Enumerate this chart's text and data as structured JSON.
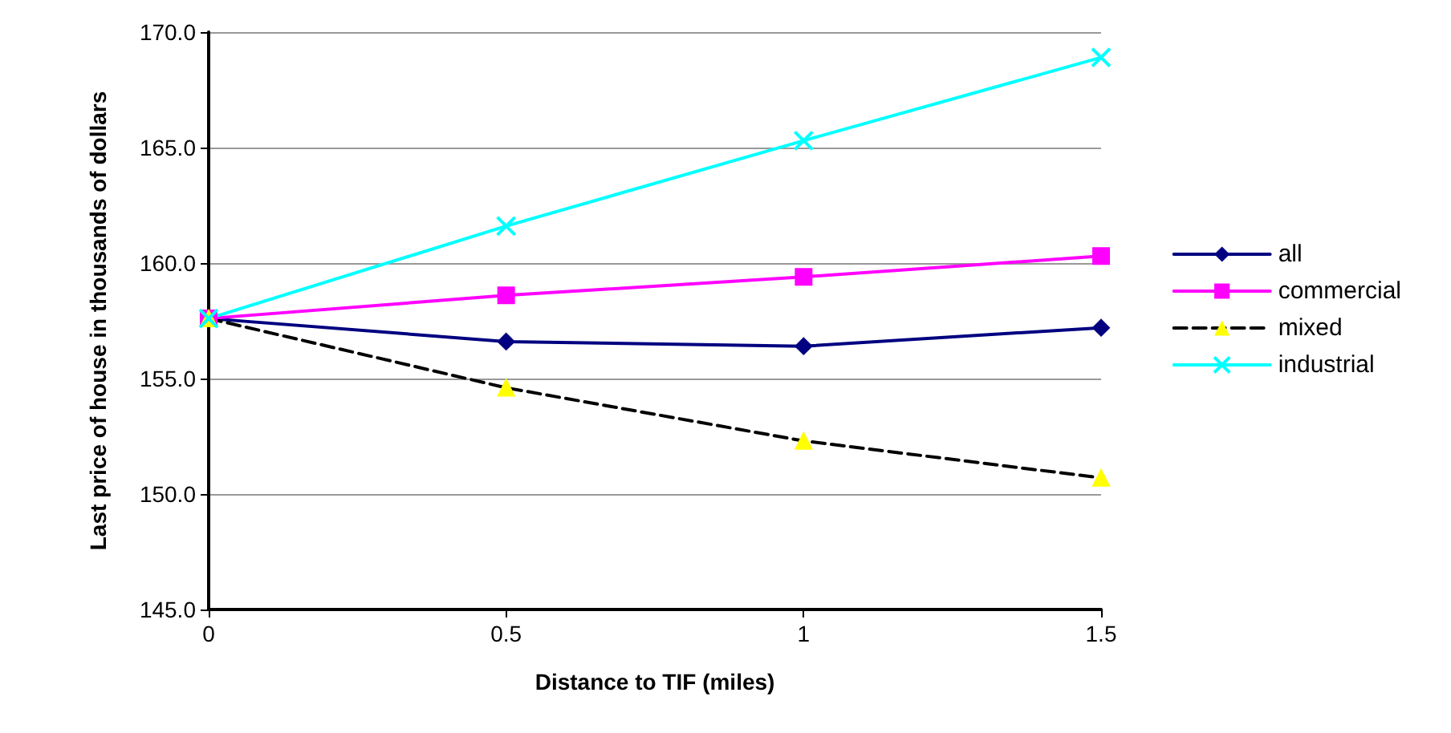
{
  "chart_data": {
    "type": "line",
    "xlabel": "Distance to TIF (miles)",
    "ylabel": "Last price of house in thousands of dollars",
    "x": [
      0,
      0.5,
      1,
      1.5
    ],
    "xlim": [
      0,
      1.5
    ],
    "xticks": [
      0,
      0.5,
      1,
      1.5
    ],
    "ylim": [
      145,
      170
    ],
    "yticks": [
      {
        "value": 145,
        "label": "145.0"
      },
      {
        "value": 150,
        "label": "150.0"
      },
      {
        "value": 155,
        "label": "155.0"
      },
      {
        "value": 160,
        "label": "160.0"
      },
      {
        "value": 165,
        "label": "165.0"
      },
      {
        "value": 170,
        "label": "170.0"
      }
    ],
    "grid": "y",
    "legend": "right",
    "series": [
      {
        "name": "all",
        "color": "#000080",
        "marker": "diamond",
        "line_style": "solid",
        "values": [
          157.6,
          156.6,
          156.4,
          157.2
        ]
      },
      {
        "name": "commercial",
        "color": "#ff00ff",
        "marker": "square",
        "line_style": "solid",
        "values": [
          157.6,
          158.6,
          159.4,
          160.3
        ]
      },
      {
        "name": "mixed",
        "color": "#ffff00",
        "marker": "triangle",
        "line_style": "dashed",
        "values": [
          157.6,
          154.6,
          152.3,
          150.7
        ]
      },
      {
        "name": "industrial",
        "color": "#00ffff",
        "marker": "cross",
        "line_style": "solid",
        "values": [
          157.6,
          161.6,
          165.3,
          168.9
        ]
      }
    ]
  }
}
